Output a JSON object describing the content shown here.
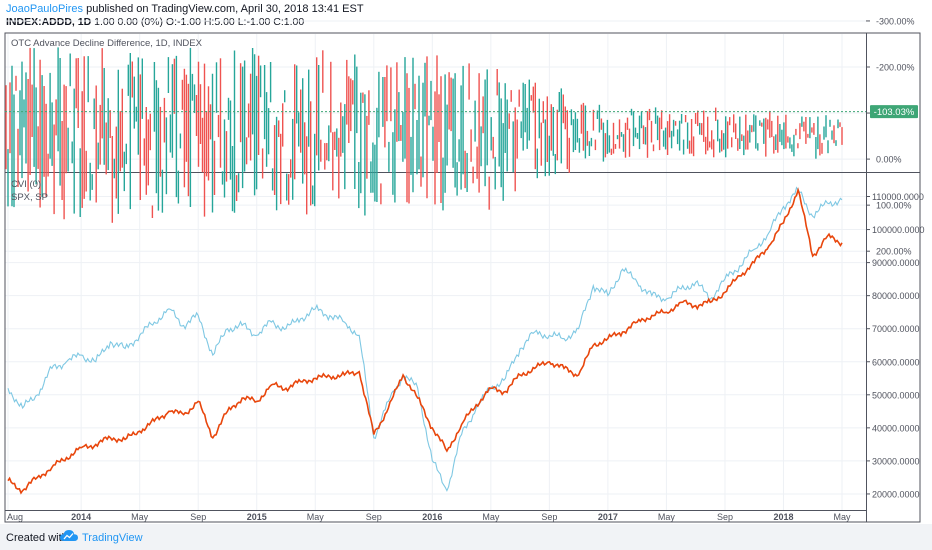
{
  "header": {
    "author": "JoaoPauloPires",
    "published": "published on TradingView.com, April 30, 2018 13:41 EST",
    "symbol": "INDEX:ADDD, 1D",
    "ohlc": "1.00 0.00 (0%) O:-1.00 H:5.00 L:-1.00 C:1.00"
  },
  "top_pane": {
    "title": "OTC Advance Decline Difference, 1D, INDEX",
    "price_label": "-103.03%"
  },
  "bottom_pane": {
    "legend_cvi": "CVI (0)",
    "legend_spx": "SPX, SP"
  },
  "footer": {
    "created_with": "Created with",
    "brand": "TradingView"
  },
  "colors": {
    "candle_up": "#26a69a",
    "candle_down": "#ef5350",
    "cvi_line": "#e8460c",
    "spx_line": "#7fc8e3",
    "price_label_bg": "#3ea676",
    "grid": "#eef1f5",
    "footer_bg": "#f1f3f6",
    "brand": "#2196f3"
  },
  "chart_data": [
    {
      "type": "bar",
      "title": "OTC Advance Decline Difference, 1D, INDEX",
      "y_axis_ticks": [
        "-300.00%",
        "-200.00%",
        "-100.00%",
        "0.00%",
        "100.00%",
        "200.00%"
      ],
      "y_axis_values": [
        -300,
        -200,
        -100,
        0,
        100,
        200
      ],
      "y_axis_inverted": true,
      "ylim": [
        -330,
        230
      ],
      "last_value": -103.03,
      "series_description": "daily candles oscillating around about -50%, wide range (about -280% to +250%) from 2013 to early 2016, narrowing to about -140% to -80% from 2017 onward"
    },
    {
      "type": "line",
      "y_axis_ticks": [
        "110000.0000",
        "100000.0000",
        "90000.0000",
        "80000.0000",
        "70000.0000",
        "60000.0000",
        "50000.0000",
        "40000.0000",
        "30000.0000",
        "20000.0000"
      ],
      "y_axis_values": [
        110000,
        100000,
        90000,
        80000,
        70000,
        60000,
        50000,
        40000,
        30000,
        20000
      ],
      "ylim": [
        13000,
        116000
      ],
      "x_axis_ticks": [
        "Aug",
        "2014",
        "May",
        "Sep",
        "2015",
        "May",
        "Sep",
        "2016",
        "May",
        "Sep",
        "2017",
        "May",
        "Sep",
        "2018",
        "May"
      ],
      "x_axis_dates": [
        "2013-08",
        "2014-01",
        "2014-05",
        "2014-09",
        "2015-01",
        "2015-05",
        "2015-09",
        "2016-01",
        "2016-05",
        "2016-09",
        "2017-01",
        "2017-05",
        "2017-09",
        "2018-01",
        "2018-05"
      ],
      "series": [
        {
          "name": "CVI (0)",
          "color": "#e8460c",
          "points": [
            [
              "2013-08",
              24000
            ],
            [
              "2013-09",
              21000
            ],
            [
              "2013-10",
              25000
            ],
            [
              "2013-11",
              28000
            ],
            [
              "2013-12",
              31000
            ],
            [
              "2014-01",
              34000
            ],
            [
              "2014-02",
              35000
            ],
            [
              "2014-03",
              37000
            ],
            [
              "2014-04",
              36500
            ],
            [
              "2014-05",
              39000
            ],
            [
              "2014-06",
              42000
            ],
            [
              "2014-07",
              45000
            ],
            [
              "2014-08",
              44000
            ],
            [
              "2014-09",
              48000
            ],
            [
              "2014-10",
              37000
            ],
            [
              "2014-11",
              45000
            ],
            [
              "2014-12",
              49000
            ],
            [
              "2015-01",
              48000
            ],
            [
              "2015-02",
              53000
            ],
            [
              "2015-03",
              52000
            ],
            [
              "2015-04",
              54000
            ],
            [
              "2015-05",
              55000
            ],
            [
              "2015-06",
              55500
            ],
            [
              "2015-07",
              56000
            ],
            [
              "2015-08",
              57000
            ],
            [
              "2015-09",
              38000
            ],
            [
              "2015-10",
              46000
            ],
            [
              "2015-11",
              56000
            ],
            [
              "2015-12",
              49000
            ],
            [
              "2016-01",
              40000
            ],
            [
              "2016-02",
              33000
            ],
            [
              "2016-03",
              41000
            ],
            [
              "2016-04",
              47000
            ],
            [
              "2016-05",
              52000
            ],
            [
              "2016-06",
              51000
            ],
            [
              "2016-07",
              56000
            ],
            [
              "2016-08",
              58000
            ],
            [
              "2016-09",
              60000
            ],
            [
              "2016-10",
              58000
            ],
            [
              "2016-11",
              56000
            ],
            [
              "2016-12",
              65000
            ],
            [
              "2017-01",
              67000
            ],
            [
              "2017-02",
              69000
            ],
            [
              "2017-03",
              72000
            ],
            [
              "2017-04",
              74000
            ],
            [
              "2017-05",
              75000
            ],
            [
              "2017-06",
              78000
            ],
            [
              "2017-07",
              77000
            ],
            [
              "2017-08",
              78000
            ],
            [
              "2017-09",
              81000
            ],
            [
              "2017-10",
              86000
            ],
            [
              "2017-11",
              90000
            ],
            [
              "2017-12",
              95000
            ],
            [
              "2018-01",
              102000
            ],
            [
              "2018-02",
              112000
            ],
            [
              "2018-03",
              92000
            ],
            [
              "2018-04",
              98000
            ],
            [
              "2018-05",
              96000
            ]
          ]
        },
        {
          "name": "SPX, SP",
          "color": "#7fc8e3",
          "points": [
            [
              "2013-08",
              52000
            ],
            [
              "2013-09",
              46000
            ],
            [
              "2013-10",
              50000
            ],
            [
              "2013-11",
              58000
            ],
            [
              "2013-12",
              60000
            ],
            [
              "2014-01",
              62000
            ],
            [
              "2014-02",
              60000
            ],
            [
              "2014-03",
              66000
            ],
            [
              "2014-04",
              64000
            ],
            [
              "2014-05",
              68000
            ],
            [
              "2014-06",
              72000
            ],
            [
              "2014-07",
              76000
            ],
            [
              "2014-08",
              71000
            ],
            [
              "2014-09",
              74000
            ],
            [
              "2014-10",
              62000
            ],
            [
              "2014-11",
              70000
            ],
            [
              "2014-12",
              71000
            ],
            [
              "2015-01",
              68000
            ],
            [
              "2015-02",
              72000
            ],
            [
              "2015-03",
              70000
            ],
            [
              "2015-04",
              73000
            ],
            [
              "2015-05",
              76000
            ],
            [
              "2015-06",
              74000
            ],
            [
              "2015-07",
              72000
            ],
            [
              "2015-08",
              68000
            ],
            [
              "2015-09",
              37000
            ],
            [
              "2015-10",
              48000
            ],
            [
              "2015-11",
              56000
            ],
            [
              "2015-12",
              52000
            ],
            [
              "2016-01",
              30000
            ],
            [
              "2016-02",
              21000
            ],
            [
              "2016-03",
              38000
            ],
            [
              "2016-04",
              46000
            ],
            [
              "2016-05",
              52000
            ],
            [
              "2016-06",
              55000
            ],
            [
              "2016-07",
              64000
            ],
            [
              "2016-08",
              69000
            ],
            [
              "2016-09",
              68000
            ],
            [
              "2016-10",
              67000
            ],
            [
              "2016-11",
              70000
            ],
            [
              "2016-12",
              83000
            ],
            [
              "2017-01",
              80000
            ],
            [
              "2017-02",
              88000
            ],
            [
              "2017-03",
              84000
            ],
            [
              "2017-04",
              80000
            ],
            [
              "2017-05",
              79000
            ],
            [
              "2017-06",
              82000
            ],
            [
              "2017-07",
              84000
            ],
            [
              "2017-08",
              79000
            ],
            [
              "2017-09",
              85000
            ],
            [
              "2017-10",
              89000
            ],
            [
              "2017-11",
              94000
            ],
            [
              "2017-12",
              99000
            ],
            [
              "2018-01",
              107000
            ],
            [
              "2018-02",
              112000
            ],
            [
              "2018-03",
              104000
            ],
            [
              "2018-04",
              108000
            ],
            [
              "2018-05",
              109000
            ]
          ]
        }
      ]
    }
  ]
}
